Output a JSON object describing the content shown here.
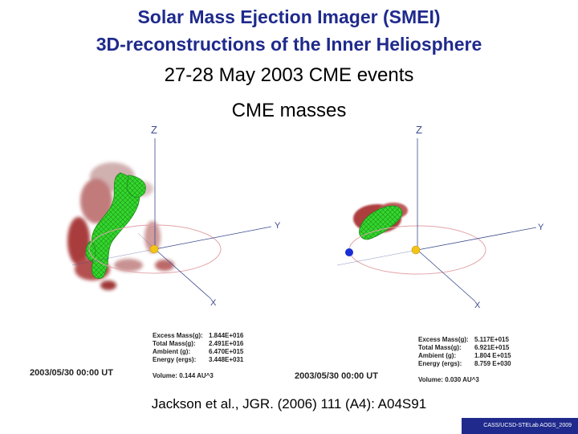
{
  "title": {
    "line1": "Solar Mass Ejection Imager (SMEI)",
    "line2": "3D-reconstructions of the Inner Heliosphere"
  },
  "subtitle": "27-28 May 2003 CME events",
  "section_label": "CME masses",
  "panels": [
    {
      "axis_labels": {
        "z": "Z",
        "y": "Y",
        "x": "X"
      },
      "timestamp": "2003/05/30 00:00 UT",
      "stats": [
        {
          "label": "Excess Mass(g):",
          "value": "1.844E+016"
        },
        {
          "label": "Total Mass(g):",
          "value": "2.491E+016"
        },
        {
          "label": "Ambient (g):",
          "value": "6.470E+015"
        },
        {
          "label": "Energy (ergs):",
          "value": "3.448E+031"
        }
      ],
      "volume": "Volume: 0.144 AU^3"
    },
    {
      "axis_labels": {
        "z": "Z",
        "y": "Y",
        "x": "X"
      },
      "timestamp": "2003/05/30 00:00 UT",
      "stats": [
        {
          "label": "Excess Mass(g):",
          "value": "5.117E+015"
        },
        {
          "label": "Total Mass(g):",
          "value": "6.921E+015"
        },
        {
          "label": "Ambient (g):",
          "value": "1.804 E+015"
        },
        {
          "label": "Energy (ergs):",
          "value": "8.759 E+030"
        }
      ],
      "volume": "Volume: 0.030 AU^3"
    }
  ],
  "citation": "Jackson et al., JGR. (2006) 111 (A4): A04S91",
  "footer": "CASS/UCSD-STELab AOGS_2009",
  "colors": {
    "title": "#1f2a8c",
    "sun": "#f2c41a",
    "earth": "#1a2ed6",
    "cme_green": "#2fd12a",
    "cme_red": "#9b1c1c",
    "orbit": "#e3a3a8",
    "axes": "#3b4a8f"
  }
}
